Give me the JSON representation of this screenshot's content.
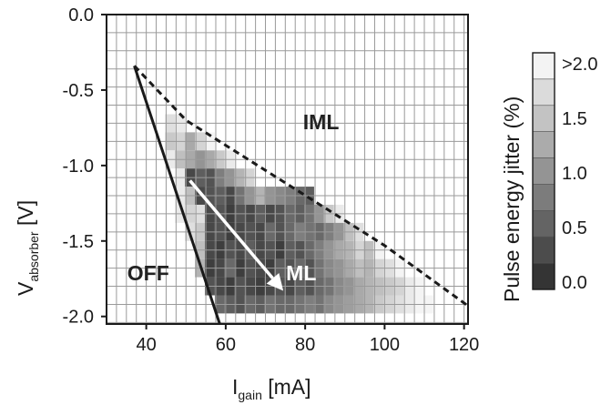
{
  "chart_data": {
    "type": "heatmap",
    "title": "",
    "xlabel": "I",
    "xlabel_sub": "gain",
    "xlabel_unit": " [mA]",
    "ylabel": "V",
    "ylabel_sub": "absorber",
    "ylabel_unit": " [V]",
    "xlim": [
      30,
      121
    ],
    "ylim": [
      -2.05,
      0
    ],
    "x_ticks": [
      40,
      60,
      80,
      100,
      120
    ],
    "x_tick_labels": [
      "40",
      "60",
      "80",
      "100",
      "120"
    ],
    "y_ticks": [
      0.0,
      -0.5,
      -1.0,
      -1.5,
      -2.0
    ],
    "y_tick_labels": [
      "0.0",
      "-0.5",
      "-1.0",
      "-1.5",
      "-2.0"
    ],
    "grid": true,
    "colorbar": {
      "label": "Pulse energy jitter (%)",
      "tick_labels": [
        ">2.0",
        "1.5",
        "1.0",
        "0.5",
        "0.0"
      ],
      "tick_values": [
        2.0,
        1.5,
        1.0,
        0.5,
        0.0
      ],
      "levels": 9
    },
    "annotations": [
      {
        "text": "IML",
        "x": 84,
        "y": -0.76,
        "color": "#222222"
      },
      {
        "text": "ML",
        "x": 79,
        "y": -1.76,
        "color": "#ffffff"
      },
      {
        "text": "OFF",
        "x": 40.5,
        "y": -1.76,
        "color": "#222222"
      }
    ],
    "boundaries": [
      {
        "name": "off-boundary",
        "style": "solid",
        "points": [
          [
            37,
            -0.34
          ],
          [
            58.5,
            -2.05
          ]
        ]
      },
      {
        "name": "iml-boundary",
        "style": "dashed",
        "points": [
          [
            37,
            -0.34
          ],
          [
            50,
            -0.7
          ],
          [
            100,
            -1.53
          ],
          [
            121,
            -1.93
          ]
        ]
      }
    ],
    "arrow": {
      "from": [
        51,
        -1.1
      ],
      "to": [
        74.5,
        -1.83
      ]
    },
    "cell_size": {
      "dx": 2.5,
      "dy": 0.12
    },
    "cells": [
      [
        46,
        -0.72,
        1.7
      ],
      [
        48.5,
        -0.72,
        1.8
      ],
      [
        46,
        -0.84,
        1.5
      ],
      [
        48.5,
        -0.84,
        1.6
      ],
      [
        51,
        -0.84,
        1.2
      ],
      [
        53.5,
        -0.84,
        1.6
      ],
      [
        56,
        -0.84,
        1.9
      ],
      [
        46,
        -0.96,
        1.8
      ],
      [
        48.5,
        -0.96,
        1.4
      ],
      [
        51,
        -0.96,
        1.2
      ],
      [
        53.5,
        -0.96,
        1.0
      ],
      [
        56,
        -0.96,
        1.2
      ],
      [
        58.5,
        -0.96,
        1.5
      ],
      [
        61,
        -0.96,
        1.8
      ],
      [
        48.5,
        -1.08,
        1.8
      ],
      [
        51,
        -1.08,
        0.3
      ],
      [
        53.5,
        -1.08,
        0.5
      ],
      [
        56,
        -1.08,
        0.4
      ],
      [
        58.5,
        -1.08,
        0.8
      ],
      [
        61,
        -1.08,
        1.0
      ],
      [
        63.5,
        -1.08,
        1.3
      ],
      [
        66,
        -1.08,
        1.6
      ],
      [
        48.5,
        -1.2,
        1.8
      ],
      [
        51,
        -1.2,
        1.4
      ],
      [
        53.5,
        -1.2,
        0.3
      ],
      [
        56,
        -1.2,
        0.4
      ],
      [
        58.5,
        -1.2,
        0.5
      ],
      [
        61,
        -1.2,
        0.3
      ],
      [
        63.5,
        -1.2,
        0.7
      ],
      [
        66,
        -1.2,
        1.0
      ],
      [
        68.5,
        -1.2,
        1.3
      ],
      [
        71,
        -1.2,
        1.0
      ],
      [
        73.5,
        -1.2,
        0.9
      ],
      [
        76,
        -1.2,
        0.8
      ],
      [
        78.5,
        -1.2,
        0.6
      ],
      [
        81,
        -1.2,
        0.5
      ],
      [
        48.5,
        -1.32,
        1.8
      ],
      [
        51,
        -1.32,
        1.6
      ],
      [
        53.5,
        -1.32,
        1.7
      ],
      [
        56,
        -1.32,
        0.3
      ],
      [
        58.5,
        -1.32,
        0.4
      ],
      [
        61,
        -1.32,
        0.2
      ],
      [
        63.5,
        -1.32,
        0.4
      ],
      [
        66,
        -1.32,
        0.3
      ],
      [
        68.5,
        -1.32,
        0.5
      ],
      [
        71,
        -1.32,
        0.3
      ],
      [
        73.5,
        -1.32,
        0.4
      ],
      [
        76,
        -1.32,
        0.6
      ],
      [
        78.5,
        -1.32,
        0.5
      ],
      [
        81,
        -1.32,
        0.7
      ],
      [
        83.5,
        -1.32,
        1.0
      ],
      [
        86,
        -1.32,
        1.5
      ],
      [
        88.5,
        -1.32,
        1.8
      ],
      [
        51,
        -1.44,
        1.7
      ],
      [
        53.5,
        -1.44,
        1.5
      ],
      [
        56,
        -1.44,
        0.3
      ],
      [
        58.5,
        -1.44,
        0.4
      ],
      [
        61,
        -1.44,
        0.2
      ],
      [
        63.5,
        -1.44,
        0.3
      ],
      [
        66,
        -1.44,
        0.4
      ],
      [
        68.5,
        -1.44,
        0.3
      ],
      [
        71,
        -1.44,
        0.6
      ],
      [
        73.5,
        -1.44,
        0.4
      ],
      [
        76,
        -1.44,
        0.6
      ],
      [
        78.5,
        -1.44,
        0.8
      ],
      [
        81,
        -1.44,
        0.7
      ],
      [
        83.5,
        -1.44,
        0.6
      ],
      [
        86,
        -1.44,
        0.8
      ],
      [
        88.5,
        -1.44,
        1.0
      ],
      [
        91,
        -1.44,
        1.4
      ],
      [
        93.5,
        -1.44,
        1.7
      ],
      [
        53.5,
        -1.56,
        1.4
      ],
      [
        56,
        -1.56,
        0.3
      ],
      [
        58.5,
        -1.56,
        0.2
      ],
      [
        61,
        -1.56,
        0.4
      ],
      [
        63.5,
        -1.56,
        0.3
      ],
      [
        66,
        -1.56,
        0.5
      ],
      [
        68.5,
        -1.56,
        0.3
      ],
      [
        71,
        -1.56,
        0.4
      ],
      [
        73.5,
        -1.56,
        0.2
      ],
      [
        76,
        -1.56,
        0.5
      ],
      [
        78.5,
        -1.56,
        0.4
      ],
      [
        81,
        -1.56,
        0.6
      ],
      [
        83.5,
        -1.56,
        0.8
      ],
      [
        86,
        -1.56,
        1.0
      ],
      [
        88.5,
        -1.56,
        1.2
      ],
      [
        91,
        -1.56,
        1.3
      ],
      [
        93.5,
        -1.56,
        1.6
      ],
      [
        96,
        -1.56,
        1.4
      ],
      [
        98.5,
        -1.56,
        1.9
      ],
      [
        53.5,
        -1.68,
        1.3
      ],
      [
        56,
        -1.68,
        0.2
      ],
      [
        58.5,
        -1.68,
        0.3
      ],
      [
        61,
        -1.68,
        0.6
      ],
      [
        63.5,
        -1.68,
        0.2
      ],
      [
        66,
        -1.68,
        0.4
      ],
      [
        68.5,
        -1.68,
        0.3
      ],
      [
        71,
        -1.68,
        0.2
      ],
      [
        73.5,
        -1.68,
        0.5
      ],
      [
        76,
        -1.68,
        0.4
      ],
      [
        78.5,
        -1.68,
        0.6
      ],
      [
        81,
        -1.68,
        0.4
      ],
      [
        83.5,
        -1.68,
        0.7
      ],
      [
        86,
        -1.68,
        0.9
      ],
      [
        88.5,
        -1.68,
        1.0
      ],
      [
        91,
        -1.68,
        1.2
      ],
      [
        93.5,
        -1.68,
        1.4
      ],
      [
        96,
        -1.68,
        1.3
      ],
      [
        98.5,
        -1.68,
        1.6
      ],
      [
        101,
        -1.68,
        1.7
      ],
      [
        103.5,
        -1.68,
        1.9
      ],
      [
        56,
        -1.8,
        0.4
      ],
      [
        58.5,
        -1.8,
        0.3
      ],
      [
        61,
        -1.8,
        0.2
      ],
      [
        63.5,
        -1.8,
        0.4
      ],
      [
        66,
        -1.8,
        0.3
      ],
      [
        68.5,
        -1.8,
        0.2
      ],
      [
        71,
        -1.8,
        0.3
      ],
      [
        73.5,
        -1.8,
        0.4
      ],
      [
        76,
        -1.8,
        0.3
      ],
      [
        78.5,
        -1.8,
        0.5
      ],
      [
        81,
        -1.8,
        0.4
      ],
      [
        83.5,
        -1.8,
        0.6
      ],
      [
        86,
        -1.8,
        0.7
      ],
      [
        88.5,
        -1.8,
        0.9
      ],
      [
        91,
        -1.8,
        1.0
      ],
      [
        93.5,
        -1.8,
        1.2
      ],
      [
        96,
        -1.8,
        1.3
      ],
      [
        98.5,
        -1.8,
        1.4
      ],
      [
        101,
        -1.8,
        1.5
      ],
      [
        103.5,
        -1.8,
        1.6
      ],
      [
        106,
        -1.8,
        1.8
      ],
      [
        108.5,
        -1.8,
        1.9
      ],
      [
        58.5,
        -1.92,
        0.6
      ],
      [
        61,
        -1.92,
        0.5
      ],
      [
        63.5,
        -1.92,
        0.4
      ],
      [
        66,
        -1.92,
        0.6
      ],
      [
        68.5,
        -1.92,
        0.5
      ],
      [
        71,
        -1.92,
        0.7
      ],
      [
        73.5,
        -1.92,
        0.6
      ],
      [
        76,
        -1.92,
        0.6
      ],
      [
        78.5,
        -1.92,
        0.7
      ],
      [
        81,
        -1.92,
        0.8
      ],
      [
        83.5,
        -1.92,
        0.7
      ],
      [
        86,
        -1.92,
        0.9
      ],
      [
        88.5,
        -1.92,
        1.0
      ],
      [
        91,
        -1.92,
        1.1
      ],
      [
        93.5,
        -1.92,
        1.2
      ],
      [
        96,
        -1.92,
        1.3
      ],
      [
        98.5,
        -1.92,
        1.5
      ],
      [
        101,
        -1.92,
        1.6
      ],
      [
        103.5,
        -1.92,
        1.7
      ],
      [
        106,
        -1.92,
        1.8
      ],
      [
        108.5,
        -1.92,
        1.9
      ],
      [
        111,
        -1.92,
        1.9
      ],
      [
        113.5,
        -1.92,
        2.0
      ]
    ]
  },
  "colors": {
    "grid": "#9a9a9a",
    "frame": "#1a1a1a",
    "curve": "#1a1a1a",
    "arrow": "#ffffff"
  }
}
